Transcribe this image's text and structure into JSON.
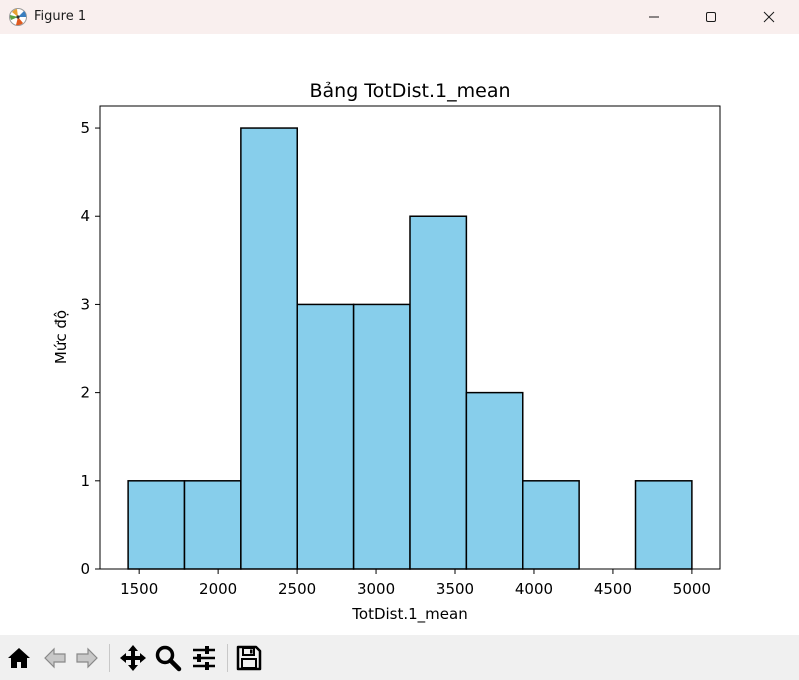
{
  "window": {
    "title": "Figure 1",
    "app_icon": "matplotlib-logo-icon",
    "controls": [
      "minimize-icon",
      "maximize-icon",
      "close-icon"
    ]
  },
  "toolbar": {
    "buttons": [
      {
        "name": "home-button",
        "icon": "home-icon",
        "label": "Home"
      },
      {
        "name": "back-button",
        "icon": "arrow-left-icon",
        "label": "Back"
      },
      {
        "name": "forward-button",
        "icon": "arrow-right-icon",
        "label": "Forward"
      },
      {
        "name": "pan-button",
        "icon": "move-icon",
        "label": "Pan"
      },
      {
        "name": "zoom-button",
        "icon": "magnifier-icon",
        "label": "Zoom"
      },
      {
        "name": "configure-subplots-button",
        "icon": "sliders-icon",
        "label": "Configure subplots"
      },
      {
        "name": "save-button",
        "icon": "floppy-disk-icon",
        "label": "Save"
      }
    ]
  },
  "chart_data": {
    "type": "bar",
    "subtype": "histogram",
    "title": "Bảng TotDist.1_mean",
    "xlabel": "TotDist.1_mean",
    "ylabel": "Mức độ",
    "bins": [
      {
        "x0": 1430,
        "x1": 1787,
        "count": 1
      },
      {
        "x0": 1787,
        "x1": 2144,
        "count": 1
      },
      {
        "x0": 2144,
        "x1": 2501,
        "count": 5
      },
      {
        "x0": 2501,
        "x1": 2858,
        "count": 3
      },
      {
        "x0": 2858,
        "x1": 3215,
        "count": 3
      },
      {
        "x0": 3215,
        "x1": 3572,
        "count": 4
      },
      {
        "x0": 3572,
        "x1": 3929,
        "count": 2
      },
      {
        "x0": 3929,
        "x1": 4286,
        "count": 1
      },
      {
        "x0": 4286,
        "x1": 4643,
        "count": 0
      },
      {
        "x0": 4643,
        "x1": 5000,
        "count": 1
      }
    ],
    "xlim": [
      1252,
      5178
    ],
    "ylim": [
      0,
      5.25
    ],
    "xticks": [
      1500,
      2000,
      2500,
      3000,
      3500,
      4000,
      4500,
      5000
    ],
    "xtick_labels": [
      "1500",
      "2000",
      "2500",
      "3000",
      "3500",
      "4000",
      "4500",
      "5000"
    ],
    "yticks": [
      0,
      1,
      2,
      3,
      4,
      5
    ],
    "ytick_labels": [
      "0",
      "1",
      "2",
      "3",
      "4",
      "5"
    ],
    "bar_color": "#87ceeb",
    "edge_color": "#000000",
    "grid": false
  }
}
